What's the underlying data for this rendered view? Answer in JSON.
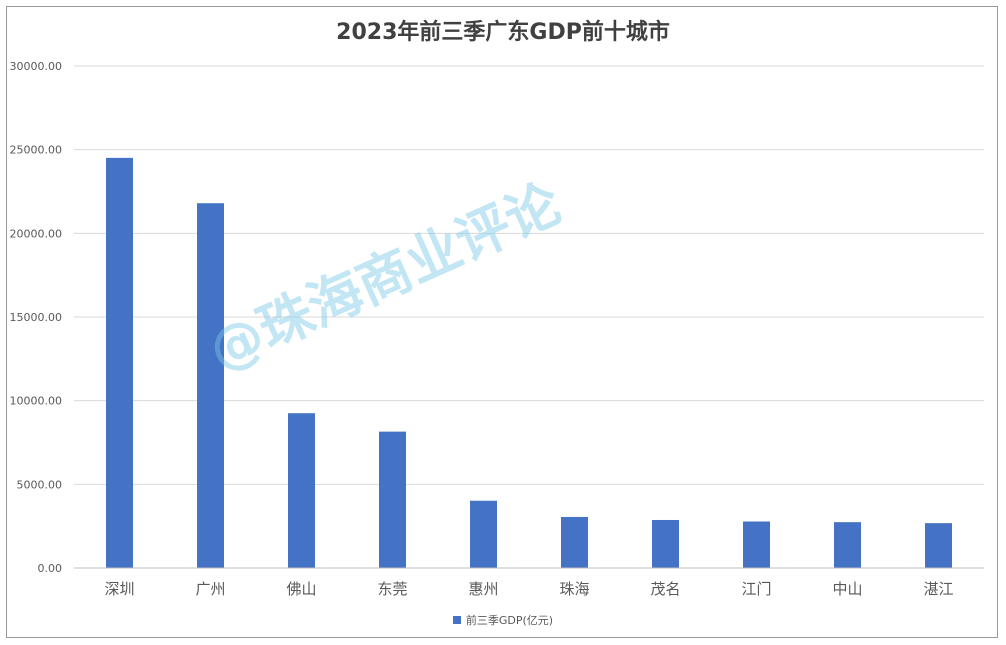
{
  "chart_data": {
    "type": "bar",
    "title": "2023年前三季广东GDP前十城市",
    "categories": [
      "深圳",
      "广州",
      "佛山",
      "东莞",
      "惠州",
      "珠海",
      "茂名",
      "江门",
      "中山",
      "湛江"
    ],
    "series": [
      {
        "name": "前三季GDP(亿元)",
        "color": "#4472C4",
        "values": [
          24510,
          21800,
          9250,
          8150,
          4020,
          3050,
          2870,
          2780,
          2740,
          2680
        ]
      }
    ],
    "ylim": [
      0,
      30000
    ],
    "yticks": [
      "0.00",
      "5000.00",
      "10000.00",
      "15000.00",
      "20000.00",
      "25000.00",
      "30000.00"
    ],
    "grid": true,
    "legend_position": "bottom"
  },
  "watermark": "@珠海商业评论"
}
